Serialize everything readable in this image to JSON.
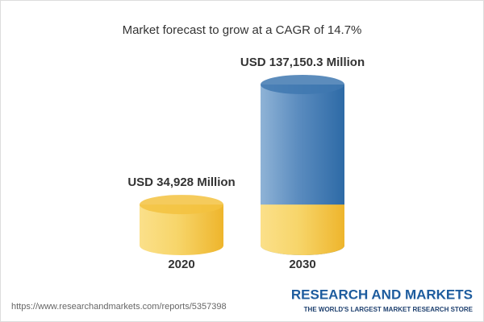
{
  "chart_data": {
    "type": "cylinder",
    "title": "Market forecast to grow at a CAGR of 14.7%",
    "categories": [
      "2020",
      "2030"
    ],
    "values": [
      34928,
      137150.3
    ],
    "value_labels": [
      "USD 34,928 Million",
      "USD 137,150.3 Million"
    ],
    "colors": [
      "#f3c23f",
      "#3f78b0"
    ]
  },
  "footer": {
    "source": "https://www.researchandmarkets.com/reports/5357398",
    "brand": "RESEARCH AND MARKETS",
    "tagline": "THE WORLD'S LARGEST MARKET RESEARCH STORE"
  }
}
